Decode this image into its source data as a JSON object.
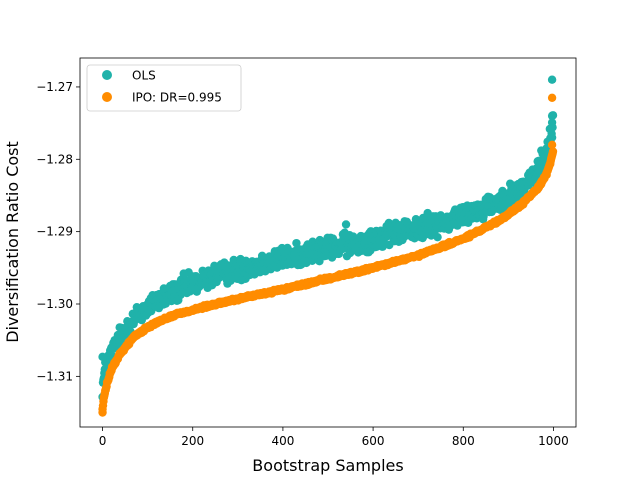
{
  "chart_data": {
    "type": "scatter",
    "title": "",
    "xlabel": "Bootstrap Samples",
    "ylabel": "Diversification Ratio Cost",
    "xlim": [
      -50,
      1050
    ],
    "ylim": [
      -1.317,
      -1.266
    ],
    "x_ticks": [
      0,
      200,
      400,
      600,
      800,
      1000
    ],
    "x_tick_labels": [
      "0",
      "200",
      "400",
      "600",
      "800",
      "1000"
    ],
    "y_ticks": [
      -1.31,
      -1.3,
      -1.29,
      -1.28,
      -1.27
    ],
    "y_tick_labels": [
      "−1.31",
      "−1.30",
      "−1.29",
      "−1.28",
      "−1.27"
    ],
    "grid": false,
    "legend_position": "top-left",
    "n_samples": 1000,
    "series": [
      {
        "name": "OLS",
        "color": "#20b2aa",
        "marker": "circle",
        "profile": [
          [
            0,
            -1.3115
          ],
          [
            5,
            -1.3095
          ],
          [
            15,
            -1.3075
          ],
          [
            30,
            -1.3055
          ],
          [
            50,
            -1.3035
          ],
          [
            80,
            -1.3015
          ],
          [
            120,
            -1.2995
          ],
          [
            180,
            -1.2978
          ],
          [
            250,
            -1.296
          ],
          [
            350,
            -1.2945
          ],
          [
            450,
            -1.293
          ],
          [
            550,
            -1.2917
          ],
          [
            650,
            -1.2903
          ],
          [
            750,
            -1.2888
          ],
          [
            850,
            -1.2866
          ],
          [
            920,
            -1.2845
          ],
          [
            960,
            -1.282
          ],
          [
            985,
            -1.279
          ],
          [
            995,
            -1.2765
          ],
          [
            999,
            -1.274
          ]
        ],
        "scatter_amplitude": 0.0011,
        "highlighted_points": [
          [
            0,
            -1.3073
          ],
          [
            3,
            -1.3105
          ],
          [
            180,
            -1.2958
          ],
          [
            540,
            -1.289
          ],
          [
            650,
            -1.2942
          ],
          [
            997,
            -1.269
          ],
          [
            997,
            -1.274
          ],
          [
            997,
            -1.277
          ]
        ]
      },
      {
        "name": "IPO: DR=0.995",
        "color": "#ff8c00",
        "marker": "circle",
        "profile": [
          [
            0,
            -1.3145
          ],
          [
            3,
            -1.313
          ],
          [
            10,
            -1.311
          ],
          [
            20,
            -1.309
          ],
          [
            40,
            -1.3068
          ],
          [
            70,
            -1.3045
          ],
          [
            110,
            -1.3028
          ],
          [
            160,
            -1.3015
          ],
          [
            220,
            -1.3005
          ],
          [
            300,
            -1.2993
          ],
          [
            400,
            -1.298
          ],
          [
            500,
            -1.2965
          ],
          [
            600,
            -1.295
          ],
          [
            700,
            -1.2933
          ],
          [
            800,
            -1.291
          ],
          [
            880,
            -1.2885
          ],
          [
            930,
            -1.2862
          ],
          [
            965,
            -1.284
          ],
          [
            985,
            -1.282
          ],
          [
            995,
            -1.28
          ],
          [
            999,
            -1.279
          ]
        ],
        "scatter_amplitude": 0.00015,
        "highlighted_points": [
          [
            0,
            -1.315
          ],
          [
            997,
            -1.2715
          ],
          [
            997,
            -1.278
          ]
        ]
      }
    ]
  }
}
